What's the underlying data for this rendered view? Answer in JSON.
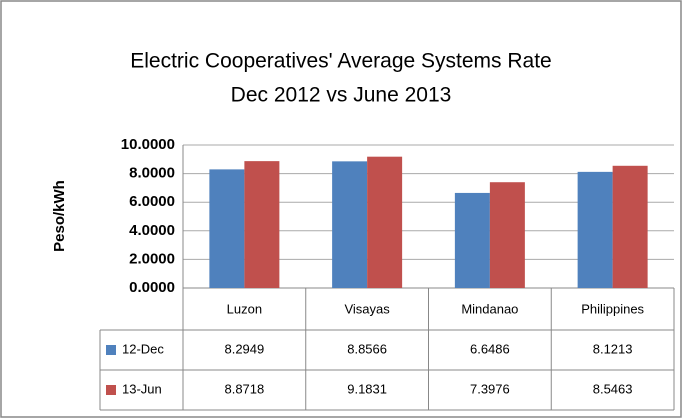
{
  "chart_data": {
    "type": "bar",
    "title": "Electric Cooperatives' Average Systems Rate",
    "subtitle": "Dec 2012 vs June 2013",
    "y_label": "Peso/kWh",
    "categories": [
      "Luzon",
      "Visayas",
      "Mindanao",
      "Philippines"
    ],
    "series": [
      {
        "name": "12-Dec",
        "color": "#4f81bd",
        "values": [
          8.2949,
          8.8566,
          6.6486,
          8.1213
        ]
      },
      {
        "name": "13-Jun",
        "color": "#c0504d",
        "values": [
          8.8718,
          9.1831,
          7.3976,
          8.5463
        ]
      }
    ],
    "ylim": [
      0,
      10
    ],
    "yticks": [
      {
        "value": 0,
        "label": "0.0000"
      },
      {
        "value": 2,
        "label": "2.0000"
      },
      {
        "value": 4,
        "label": "4.0000"
      },
      {
        "value": 6,
        "label": "6.0000"
      },
      {
        "value": 8,
        "label": "8.0000"
      },
      {
        "value": 10,
        "label": "10.0000"
      }
    ],
    "grid": true
  }
}
